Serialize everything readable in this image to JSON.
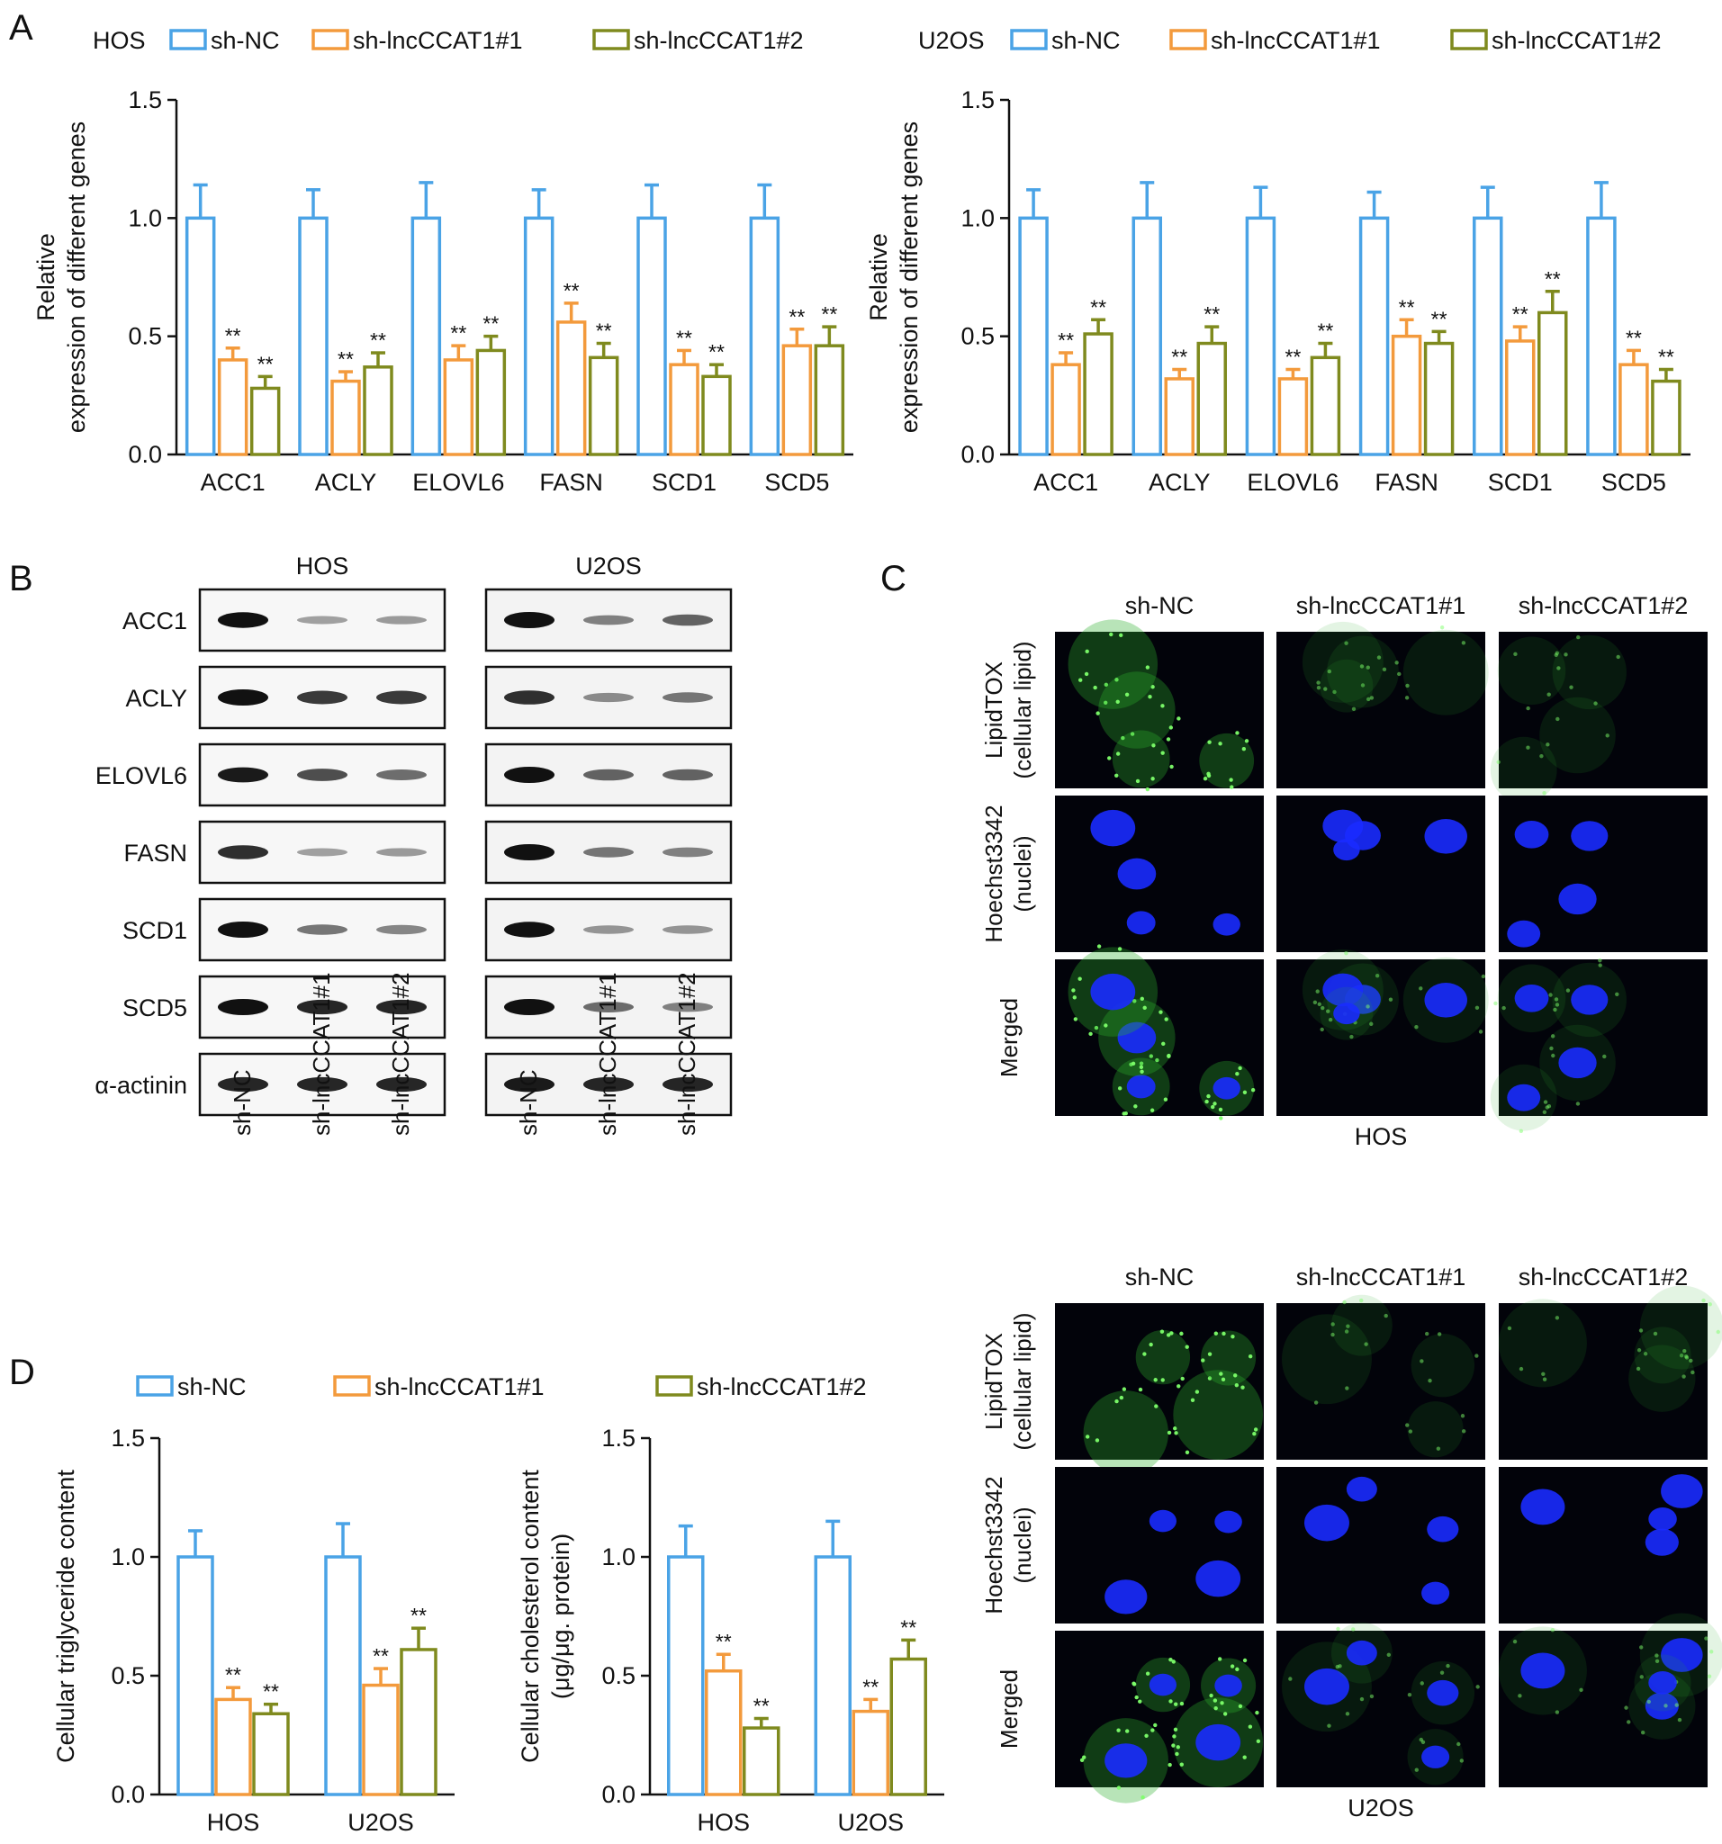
{
  "colors": {
    "sh_nc": "#4aa3e6",
    "sh1": "#f39a3c",
    "sh2": "#7f8a1e"
  },
  "panel_labels": {
    "a": "A",
    "b": "B",
    "c": "C",
    "d": "D"
  },
  "legend_labels": {
    "sh_nc": "sh-NC",
    "sh1": "sh-lncCCAT1#1",
    "sh2": "sh-lncCCAT1#2"
  },
  "sig_mark": "**",
  "chart_data": [
    {
      "id": "A-HOS",
      "type": "bar",
      "legend_title": "HOS",
      "ylabel_lines": [
        "Relative",
        "expression of different genes"
      ],
      "ylim": [
        0,
        1.5
      ],
      "yticks": [
        "0.0",
        "0.5",
        "1.0",
        "1.5"
      ],
      "categories": [
        "ACC1",
        "ACLY",
        "ELOVL6",
        "FASN",
        "SCD1",
        "SCD5"
      ],
      "series": [
        {
          "name": "sh-NC",
          "values": [
            1.0,
            1.0,
            1.0,
            1.0,
            1.0,
            1.0
          ],
          "errors": [
            0.14,
            0.12,
            0.15,
            0.12,
            0.14,
            0.14
          ]
        },
        {
          "name": "sh-lncCCAT1#1",
          "values": [
            0.4,
            0.31,
            0.4,
            0.56,
            0.38,
            0.46
          ],
          "errors": [
            0.05,
            0.04,
            0.06,
            0.08,
            0.06,
            0.07
          ]
        },
        {
          "name": "sh-lncCCAT1#2",
          "values": [
            0.28,
            0.37,
            0.44,
            0.41,
            0.33,
            0.46
          ],
          "errors": [
            0.05,
            0.06,
            0.06,
            0.06,
            0.05,
            0.08
          ]
        }
      ],
      "significance": [
        [
          "",
          "**",
          "**"
        ],
        [
          "",
          "**",
          "**"
        ],
        [
          "",
          "**",
          "**"
        ],
        [
          "",
          "**",
          "**"
        ],
        [
          "",
          "**",
          "**"
        ],
        [
          "",
          "**",
          "**"
        ]
      ]
    },
    {
      "id": "A-U2OS",
      "type": "bar",
      "legend_title": "U2OS",
      "ylabel_lines": [
        "Relative",
        "expression of different genes"
      ],
      "ylim": [
        0,
        1.5
      ],
      "yticks": [
        "0.0",
        "0.5",
        "1.0",
        "1.5"
      ],
      "categories": [
        "ACC1",
        "ACLY",
        "ELOVL6",
        "FASN",
        "SCD1",
        "SCD5"
      ],
      "series": [
        {
          "name": "sh-NC",
          "values": [
            1.0,
            1.0,
            1.0,
            1.0,
            1.0,
            1.0
          ],
          "errors": [
            0.12,
            0.15,
            0.13,
            0.11,
            0.13,
            0.15
          ]
        },
        {
          "name": "sh-lncCCAT1#1",
          "values": [
            0.38,
            0.32,
            0.32,
            0.5,
            0.48,
            0.38
          ],
          "errors": [
            0.05,
            0.04,
            0.04,
            0.07,
            0.06,
            0.06
          ]
        },
        {
          "name": "sh-lncCCAT1#2",
          "values": [
            0.51,
            0.47,
            0.41,
            0.47,
            0.6,
            0.31
          ],
          "errors": [
            0.06,
            0.07,
            0.06,
            0.05,
            0.09,
            0.05
          ]
        }
      ],
      "significance": [
        [
          "",
          "**",
          "**"
        ],
        [
          "",
          "**",
          "**"
        ],
        [
          "",
          "**",
          "**"
        ],
        [
          "",
          "**",
          "**"
        ],
        [
          "",
          "**",
          "**"
        ],
        [
          "",
          "**",
          "**"
        ]
      ]
    },
    {
      "id": "D-TG",
      "type": "bar",
      "ylabel_lines": [
        "Cellular triglyceride content"
      ],
      "ylim": [
        0,
        1.5
      ],
      "yticks": [
        "0.0",
        "0.5",
        "1.0",
        "1.5"
      ],
      "categories": [
        "HOS",
        "U2OS"
      ],
      "series": [
        {
          "name": "sh-NC",
          "values": [
            1.0,
            1.0
          ],
          "errors": [
            0.11,
            0.14
          ]
        },
        {
          "name": "sh-lncCCAT1#1",
          "values": [
            0.4,
            0.46
          ],
          "errors": [
            0.05,
            0.07
          ]
        },
        {
          "name": "sh-lncCCAT1#2",
          "values": [
            0.34,
            0.61
          ],
          "errors": [
            0.04,
            0.09
          ]
        }
      ],
      "significance": [
        [
          "",
          "**",
          "**"
        ],
        [
          "",
          "**",
          "**"
        ]
      ]
    },
    {
      "id": "D-CHOL",
      "type": "bar",
      "ylabel_lines": [
        "Cellular cholesterol content",
        "(μg/μg. protein)"
      ],
      "ylim": [
        0,
        1.5
      ],
      "yticks": [
        "0.0",
        "0.5",
        "1.0",
        "1.5"
      ],
      "categories": [
        "HOS",
        "U2OS"
      ],
      "series": [
        {
          "name": "sh-NC",
          "values": [
            1.0,
            1.0
          ],
          "errors": [
            0.13,
            0.15
          ]
        },
        {
          "name": "sh-lncCCAT1#1",
          "values": [
            0.52,
            0.35
          ],
          "errors": [
            0.07,
            0.05
          ]
        },
        {
          "name": "sh-lncCCAT1#2",
          "values": [
            0.28,
            0.57
          ],
          "errors": [
            0.04,
            0.08
          ]
        }
      ],
      "significance": [
        [
          "",
          "**",
          "**"
        ],
        [
          "",
          "**",
          "**"
        ]
      ]
    }
  ],
  "western": {
    "cell_lines": [
      "HOS",
      "U2OS"
    ],
    "proteins": [
      "ACC1",
      "ACLY",
      "ELOVL6",
      "FASN",
      "SCD1",
      "SCD5",
      "α-actinin"
    ],
    "lanes": [
      "sh-NC",
      "sh-lncCCAT1#1",
      "sh-lncCCAT1#2"
    ],
    "band_intensity": {
      "HOS": [
        [
          0.95,
          0.25,
          0.28
        ],
        [
          1.0,
          0.75,
          0.75
        ],
        [
          0.9,
          0.65,
          0.5
        ],
        [
          0.8,
          0.25,
          0.28
        ],
        [
          1.0,
          0.45,
          0.38
        ],
        [
          1.0,
          0.85,
          0.85
        ],
        [
          0.85,
          0.85,
          0.85
        ]
      ],
      "U2OS": [
        [
          1.0,
          0.4,
          0.55
        ],
        [
          0.8,
          0.35,
          0.45
        ],
        [
          1.0,
          0.55,
          0.55
        ],
        [
          1.0,
          0.45,
          0.4
        ],
        [
          0.95,
          0.3,
          0.3
        ],
        [
          1.0,
          0.5,
          0.4
        ],
        [
          0.9,
          0.85,
          0.85
        ]
      ]
    }
  },
  "microscopy": {
    "columns": [
      "sh-NC",
      "sh-lncCCAT1#1",
      "sh-lncCCAT1#2"
    ],
    "rows": [
      {
        "line1": "LipidTOX",
        "line2": "(cellular lipid)"
      },
      {
        "line1": "Hoechst3342",
        "line2": "(nuclei)"
      },
      {
        "line1": "Merged",
        "line2": ""
      }
    ],
    "panel_captions": [
      "HOS",
      "U2OS"
    ]
  }
}
